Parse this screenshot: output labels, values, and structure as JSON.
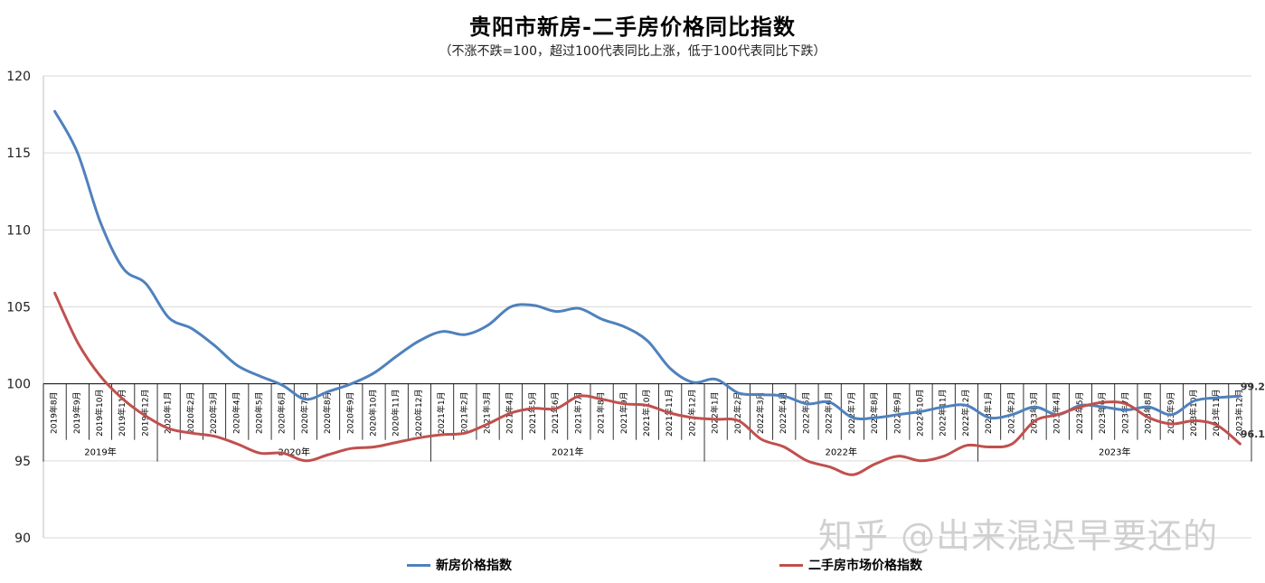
{
  "title": "贵阳市新房-二手房价格同比指数",
  "subtitle": "（不涨不跌=100，超过100代表同比上涨，低于100代表同比下跌）",
  "watermark": "知乎 @出来混迟早要还的",
  "colors": {
    "new": "#4F81BD",
    "second": "#C0504D",
    "grid": "#d9d9d9",
    "axis": "#000000"
  },
  "chart_data": {
    "type": "line",
    "title": "贵阳市新房-二手房价格同比指数",
    "subtitle": "（不涨不跌=100，超过100代表同比上涨，低于100代表同比下跌）",
    "ylim": [
      90,
      120
    ],
    "yticks": [
      90,
      95,
      100,
      105,
      110,
      115,
      120
    ],
    "grid": true,
    "legend_position": "bottom",
    "x": [
      "2019年8月",
      "2019年9月",
      "2019年10月",
      "2019年11月",
      "2019年12月",
      "2020年1月",
      "2020年2月",
      "2020年3月",
      "2020年4月",
      "2020年5月",
      "2020年6月",
      "2020年7月",
      "2020年8月",
      "2020年9月",
      "2020年10月",
      "2020年11月",
      "2020年12月",
      "2021年1月",
      "2021年2月",
      "2021年3月",
      "2021年4月",
      "2021年5月",
      "2021年6月",
      "2021年7月",
      "2021年8月",
      "2021年9月",
      "2021年10月",
      "2021年11月",
      "2021年12月",
      "2022年1月",
      "2022年2月",
      "2022年3月",
      "2022年4月",
      "2022年5月",
      "2022年6月",
      "2022年7月",
      "2022年8月",
      "2022年9月",
      "2022年10月",
      "2022年11月",
      "2022年12月",
      "2023年1月",
      "2023年2月",
      "2023年3月",
      "2023年4月",
      "2023年5月",
      "2023年6月",
      "2023年7月",
      "2023年8月",
      "2023年9月",
      "2023年10月",
      "2023年11月",
      "2023年12月"
    ],
    "years": [
      {
        "label": "2019年",
        "count": 5
      },
      {
        "label": "2020年",
        "count": 12
      },
      {
        "label": "2021年",
        "count": 12
      },
      {
        "label": "2022年",
        "count": 12
      },
      {
        "label": "2023年",
        "count": 12
      }
    ],
    "series": [
      {
        "name": "新房价格指数",
        "color": "#4F81BD",
        "values": [
          117.7,
          115.0,
          110.5,
          107.5,
          106.5,
          104.3,
          103.6,
          102.5,
          101.2,
          100.5,
          99.9,
          99.0,
          99.5,
          100.0,
          100.7,
          101.8,
          102.8,
          103.4,
          103.2,
          103.8,
          105.0,
          105.1,
          104.7,
          104.9,
          104.2,
          103.7,
          102.8,
          101.0,
          100.1,
          100.3,
          99.4,
          99.3,
          99.2,
          98.7,
          98.8,
          97.8,
          97.8,
          98.0,
          98.2,
          98.5,
          98.6,
          97.8,
          98.0,
          98.5,
          98.0,
          98.6,
          98.5,
          98.3,
          98.5,
          98.0,
          98.9,
          99.1,
          99.2
        ]
      },
      {
        "name": "二手房市场价格指数",
        "color": "#C0504D",
        "values": [
          105.9,
          102.7,
          100.5,
          99.0,
          97.9,
          97.1,
          96.8,
          96.6,
          96.1,
          95.5,
          95.5,
          95.0,
          95.4,
          95.8,
          95.9,
          96.2,
          96.5,
          96.7,
          96.8,
          97.4,
          98.1,
          98.4,
          98.4,
          99.2,
          99.0,
          98.7,
          98.6,
          98.1,
          97.8,
          97.7,
          97.6,
          96.4,
          95.9,
          95.0,
          94.6,
          94.1,
          94.8,
          95.3,
          95.0,
          95.3,
          96.0,
          95.9,
          96.1,
          97.6,
          98.0,
          98.5,
          98.8,
          98.7,
          97.8,
          97.4,
          97.6,
          97.3,
          96.1
        ]
      }
    ],
    "end_labels": [
      "99.2",
      "96.1"
    ]
  },
  "legend": [
    {
      "label": "新房价格指数",
      "color": "#4F81BD"
    },
    {
      "label": "二手房市场价格指数",
      "color": "#C0504D"
    }
  ]
}
